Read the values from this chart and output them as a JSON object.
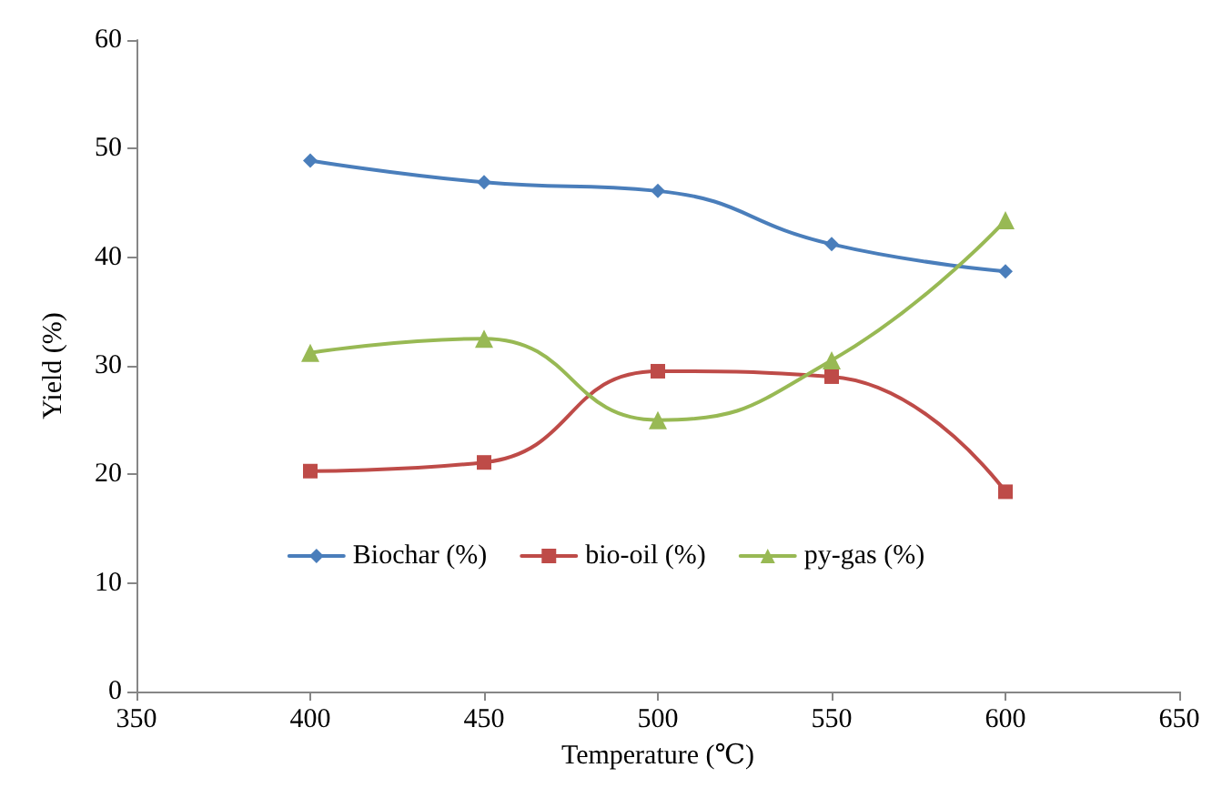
{
  "chart_data": {
    "type": "line",
    "xlabel": "Temperature (℃)",
    "ylabel": "Yield (%)",
    "x": [
      400,
      450,
      500,
      550,
      600
    ],
    "series": [
      {
        "name": "Biochar (%)",
        "color": "#4a7ebb",
        "marker": "diamond",
        "values": [
          48.9,
          46.9,
          46.1,
          41.2,
          38.7
        ]
      },
      {
        "name": "bio-oil (%)",
        "color": "#be4b48",
        "marker": "square",
        "values": [
          20.3,
          21.1,
          29.5,
          29.0,
          18.4
        ]
      },
      {
        "name": "py-gas (%)",
        "color": "#98b954",
        "marker": "triangle",
        "values": [
          31.2,
          32.5,
          25.0,
          30.5,
          43.4
        ]
      }
    ],
    "xlim": [
      350,
      650
    ],
    "xticks": [
      350,
      400,
      450,
      500,
      550,
      600,
      650
    ],
    "ylim": [
      0,
      60
    ],
    "yticks": [
      0,
      10,
      20,
      30,
      40,
      50,
      60
    ],
    "grid": false,
    "legend": "bottom",
    "line_style": "solid"
  }
}
